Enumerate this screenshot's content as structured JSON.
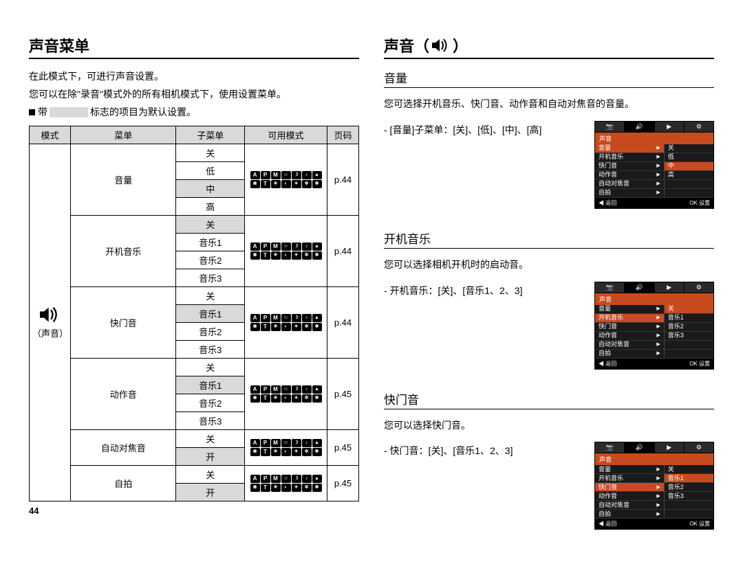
{
  "left": {
    "title": "声音菜单",
    "intro1": "在此模式下，可进行声音设置。",
    "intro2": "您可以在除\"录音\"模式外的所有相机模式下，使用设置菜单。",
    "bullet_prefix": "带",
    "bullet_suffix": "标志的项目为默认设置。",
    "page_num": "44",
    "table": {
      "headers": [
        "模式",
        "菜单",
        "子菜单",
        "可用模式",
        "页码"
      ],
      "mode_label": "（声音）",
      "groups": [
        {
          "menu": "音量",
          "page": "p.44",
          "subs": [
            {
              "label": "关",
              "default": false
            },
            {
              "label": "低",
              "default": false
            },
            {
              "label": "中",
              "default": true
            },
            {
              "label": "高",
              "default": false
            }
          ]
        },
        {
          "menu": "开机音乐",
          "page": "p.44",
          "subs": [
            {
              "label": "关",
              "default": true
            },
            {
              "label": "音乐1",
              "default": false
            },
            {
              "label": "音乐2",
              "default": false
            },
            {
              "label": "音乐3",
              "default": false
            }
          ]
        },
        {
          "menu": "快门音",
          "page": "p.44",
          "subs": [
            {
              "label": "关",
              "default": false
            },
            {
              "label": "音乐1",
              "default": true
            },
            {
              "label": "音乐2",
              "default": false
            },
            {
              "label": "音乐3",
              "default": false
            }
          ]
        },
        {
          "menu": "动作音",
          "page": "p.45",
          "subs": [
            {
              "label": "关",
              "default": false
            },
            {
              "label": "音乐1",
              "default": true
            },
            {
              "label": "音乐2",
              "default": false
            },
            {
              "label": "音乐3",
              "default": false
            }
          ]
        },
        {
          "menu": "自动对焦音",
          "page": "p.45",
          "subs": [
            {
              "label": "关",
              "default": false
            },
            {
              "label": "开",
              "default": true
            }
          ]
        },
        {
          "menu": "自拍",
          "page": "p.45",
          "subs": [
            {
              "label": "关",
              "default": false
            },
            {
              "label": "开",
              "default": true
            }
          ]
        }
      ]
    }
  },
  "right": {
    "title_prefix": "声音（",
    "title_suffix": "）",
    "sections": [
      {
        "title": "音量",
        "desc": "您可选择开机音乐、快门音、动作音和自动对焦音的音量。",
        "option_line": "- [音量]子菜单：[关]、[低]、[中]、[高]",
        "lcd": {
          "header": "声音",
          "menu": [
            "音量",
            "开机音乐",
            "快门音",
            "动作音",
            "自动对焦音",
            "自拍"
          ],
          "sel_index": 0,
          "vals": [
            "关",
            "低",
            "中",
            "高"
          ],
          "val_sel": 2,
          "foot_left": "◀  返回",
          "foot_right": "OK 设置"
        }
      },
      {
        "title": "开机音乐",
        "desc": "您可以选择相机开机时的启动音。",
        "option_line": "- 开机音乐：[关]、[音乐1、2、3]",
        "lcd": {
          "header": "声音",
          "menu": [
            "音量",
            "开机音乐",
            "快门音",
            "动作音",
            "自动对焦音",
            "自拍"
          ],
          "sel_index": 1,
          "vals": [
            "关",
            "音乐1",
            "音乐2",
            "音乐3"
          ],
          "val_sel": 0,
          "foot_left": "◀  返回",
          "foot_right": "OK 设置"
        }
      },
      {
        "title": "快门音",
        "desc": "您可以选择快门音。",
        "option_line": "- 快门音：[关]、[音乐1、2、3]",
        "lcd": {
          "header": "声音",
          "menu": [
            "音量",
            "开机音乐",
            "快门音",
            "动作音",
            "自动对焦音",
            "自拍"
          ],
          "sel_index": 2,
          "vals": [
            "关",
            "音乐1",
            "音乐2",
            "音乐3"
          ],
          "val_sel": 1,
          "foot_left": "◀  返回",
          "foot_right": "OK 设置"
        }
      }
    ]
  }
}
